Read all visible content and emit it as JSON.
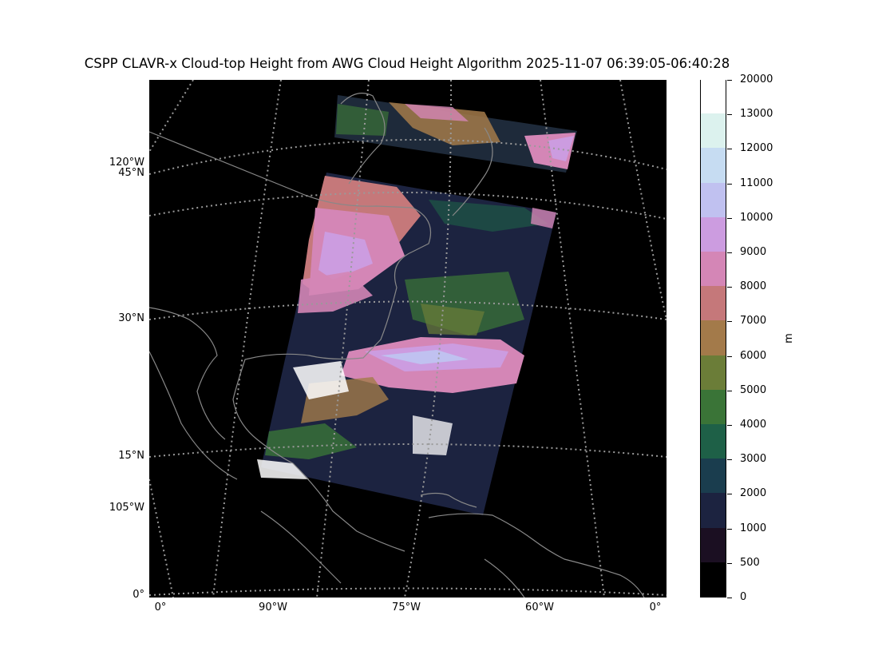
{
  "title": "CSPP CLAVR-x Cloud-top Height from AWG Cloud Height Algorithm 2025-11-07 06:39:05-06:40:28",
  "lat_labels": {
    "l120w": "120°W",
    "l45n": "45°N",
    "l30n": "30°N",
    "l15n": "15°N",
    "l105w": "105°W",
    "l0": "0°"
  },
  "lon_labels": {
    "b0a": "0°",
    "b90w": "90°W",
    "b75w": "75°W",
    "b60w": "60°W",
    "b0b": "0°"
  },
  "colorbar": {
    "unit": "m",
    "ticks": [
      "0",
      "500",
      "1000",
      "2000",
      "3000",
      "4000",
      "5000",
      "6000",
      "7000",
      "8000",
      "9000",
      "10000",
      "11000",
      "12000",
      "13000",
      "20000"
    ],
    "colors": [
      "#000000",
      "#1b0f22",
      "#1c2340",
      "#1a3d4e",
      "#1e6047",
      "#3a7437",
      "#6b7d38",
      "#a37a4a",
      "#c5787a",
      "#d486b6",
      "#cc9ce0",
      "#c0c1f0",
      "#c6dcf2",
      "#dcf2ee",
      "#ffffff"
    ]
  }
}
